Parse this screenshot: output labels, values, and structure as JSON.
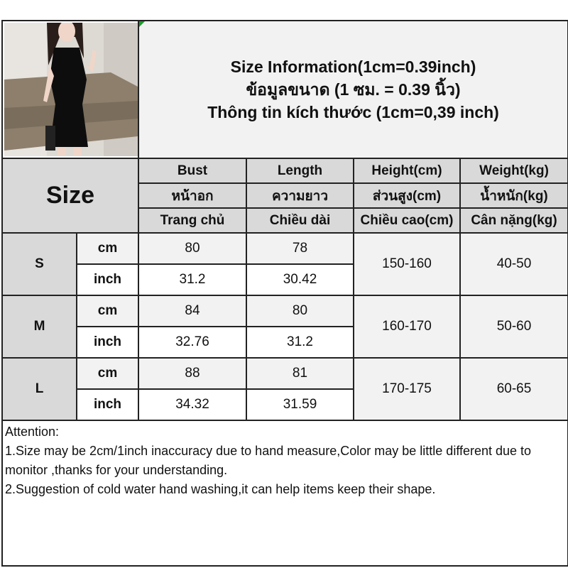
{
  "title": {
    "line_en": "Size Information(1cm=0.39inch)",
    "line_th": "ข้อมูลขนาด (1 ซม. = 0.39 นิ้ว)",
    "line_vi": "Thông tin kích thước (1cm=0,39 inch)"
  },
  "size_label": "Size",
  "columns": [
    {
      "en": "Bust",
      "th": "หน้าอก",
      "vi": "Trang chủ"
    },
    {
      "en": "Length",
      "th": "ความยาว",
      "vi": "Chiều dài"
    },
    {
      "en": "Height(cm)",
      "th": "ส่วนสูง(cm)",
      "vi": "Chiều cao(cm)"
    },
    {
      "en": "Weight(kg)",
      "th": "น้ำหนัก(kg)",
      "vi": "Cân nặng(kg)"
    }
  ],
  "units": {
    "cm": "cm",
    "inch": "inch"
  },
  "rows": [
    {
      "size": "S",
      "bust_cm": "80",
      "length_cm": "78",
      "bust_inch": "31.2",
      "length_inch": "30.42",
      "height": "150-160",
      "weight": "40-50"
    },
    {
      "size": "M",
      "bust_cm": "84",
      "length_cm": "80",
      "bust_inch": "32.76",
      "length_inch": "31.2",
      "height": "160-170",
      "weight": "50-60"
    },
    {
      "size": "L",
      "bust_cm": "88",
      "length_cm": "81",
      "bust_inch": "34.32",
      "length_inch": "31.59",
      "height": "170-175",
      "weight": "60-65"
    }
  ],
  "attention": {
    "heading": "Attention:",
    "note1": "1.Size may be 2cm/1inch inaccuracy due to hand measure,Color may be little different due to monitor ,thanks for your understanding.",
    "note2": "2.Suggestion of cold water hand washing,it can help items keep their shape."
  },
  "colors": {
    "header_gray": "#d9d9d9",
    "light_gray": "#f2f2f2",
    "border": "#222222"
  }
}
